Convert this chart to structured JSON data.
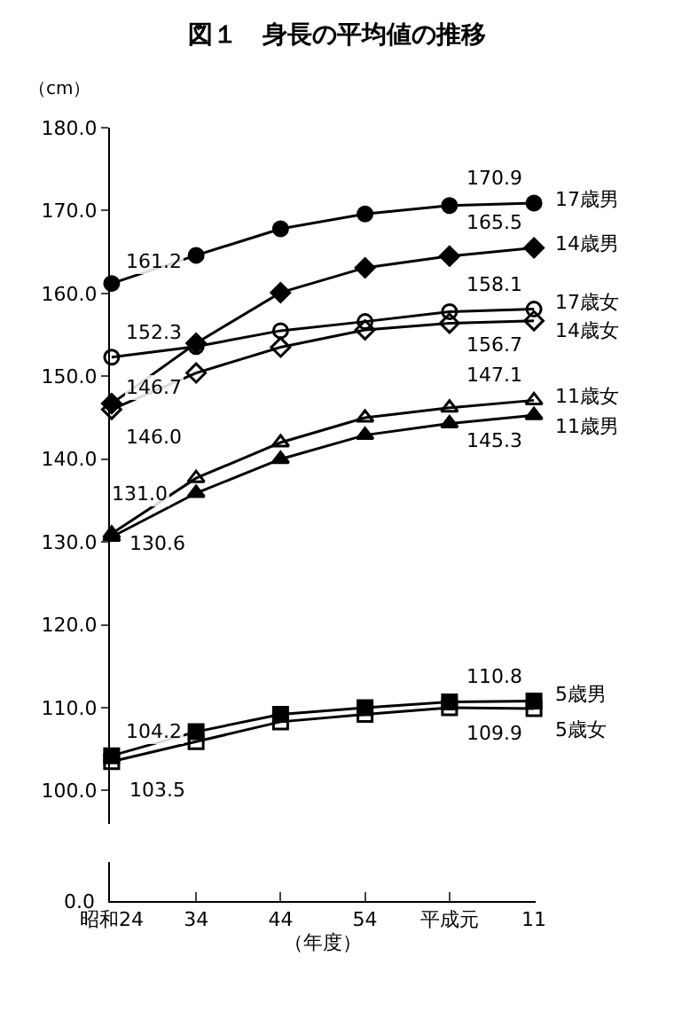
{
  "chart_data": {
    "type": "line",
    "title": "図１　身長の平均値の推移",
    "ylabel": "（cm）",
    "xlabel": "（年度）",
    "categories": [
      "昭和24",
      "34",
      "44",
      "54",
      "平成元",
      "11"
    ],
    "ylim": [
      96,
      180
    ],
    "yticks": [
      {
        "value": 100,
        "label": "100.0"
      },
      {
        "value": 110,
        "label": "110.0"
      },
      {
        "value": 120,
        "label": "120.0"
      },
      {
        "value": 130,
        "label": "130.0"
      },
      {
        "value": 140,
        "label": "140.0"
      },
      {
        "value": 150,
        "label": "150.0"
      },
      {
        "value": 160,
        "label": "160.0"
      },
      {
        "value": 170,
        "label": "170.0"
      },
      {
        "value": 180,
        "label": "180.0"
      }
    ],
    "grid": false,
    "legend": false,
    "line_style": "solid",
    "annotations": [
      "0.0"
    ],
    "series": [
      {
        "name": "17歳男",
        "color": "#000000",
        "marker": "circle",
        "values": [
          161.2,
          164.6,
          167.8,
          169.6,
          170.6,
          170.9
        ],
        "value_labels": [
          "161.2",
          null,
          null,
          null,
          null,
          "170.9"
        ]
      },
      {
        "name": "14歳男",
        "color": "#000000",
        "marker": "diamond",
        "values": [
          146.7,
          154.0,
          160.1,
          163.1,
          164.5,
          165.5
        ],
        "value_labels": [
          "146.7",
          null,
          null,
          null,
          null,
          "165.5"
        ]
      },
      {
        "name": "17歳女",
        "color": "#000000",
        "marker": "circle-open",
        "values": [
          152.3,
          153.6,
          155.5,
          156.6,
          157.8,
          158.1
        ],
        "value_labels": [
          "152.3",
          null,
          null,
          null,
          null,
          "158.1"
        ]
      },
      {
        "name": "14歳女",
        "color": "#000000",
        "marker": "diamond-open",
        "values": [
          146.0,
          150.4,
          153.5,
          155.6,
          156.4,
          156.7
        ],
        "value_labels": [
          "146.0",
          null,
          null,
          null,
          null,
          "156.7"
        ]
      },
      {
        "name": "11歳女",
        "color": "#000000",
        "marker": "triangle-open",
        "values": [
          131.0,
          137.7,
          142.0,
          145.0,
          146.2,
          147.1
        ],
        "value_labels": [
          "131.0",
          null,
          null,
          null,
          null,
          "147.1"
        ]
      },
      {
        "name": "11歳男",
        "color": "#000000",
        "marker": "triangle",
        "values": [
          130.6,
          135.9,
          140.0,
          142.9,
          144.3,
          145.3
        ],
        "value_labels": [
          "130.6",
          null,
          null,
          null,
          null,
          "145.3"
        ]
      },
      {
        "name": "5歳男",
        "color": "#000000",
        "marker": "square",
        "values": [
          104.2,
          107.1,
          109.2,
          110.0,
          110.7,
          110.8
        ],
        "value_labels": [
          "104.2",
          null,
          null,
          null,
          null,
          "110.8"
        ]
      },
      {
        "name": "5歳女",
        "color": "#000000",
        "marker": "square-open",
        "values": [
          103.5,
          105.9,
          108.3,
          109.2,
          110.0,
          109.9
        ],
        "value_labels": [
          "103.5",
          null,
          null,
          null,
          null,
          "109.9"
        ]
      }
    ]
  }
}
